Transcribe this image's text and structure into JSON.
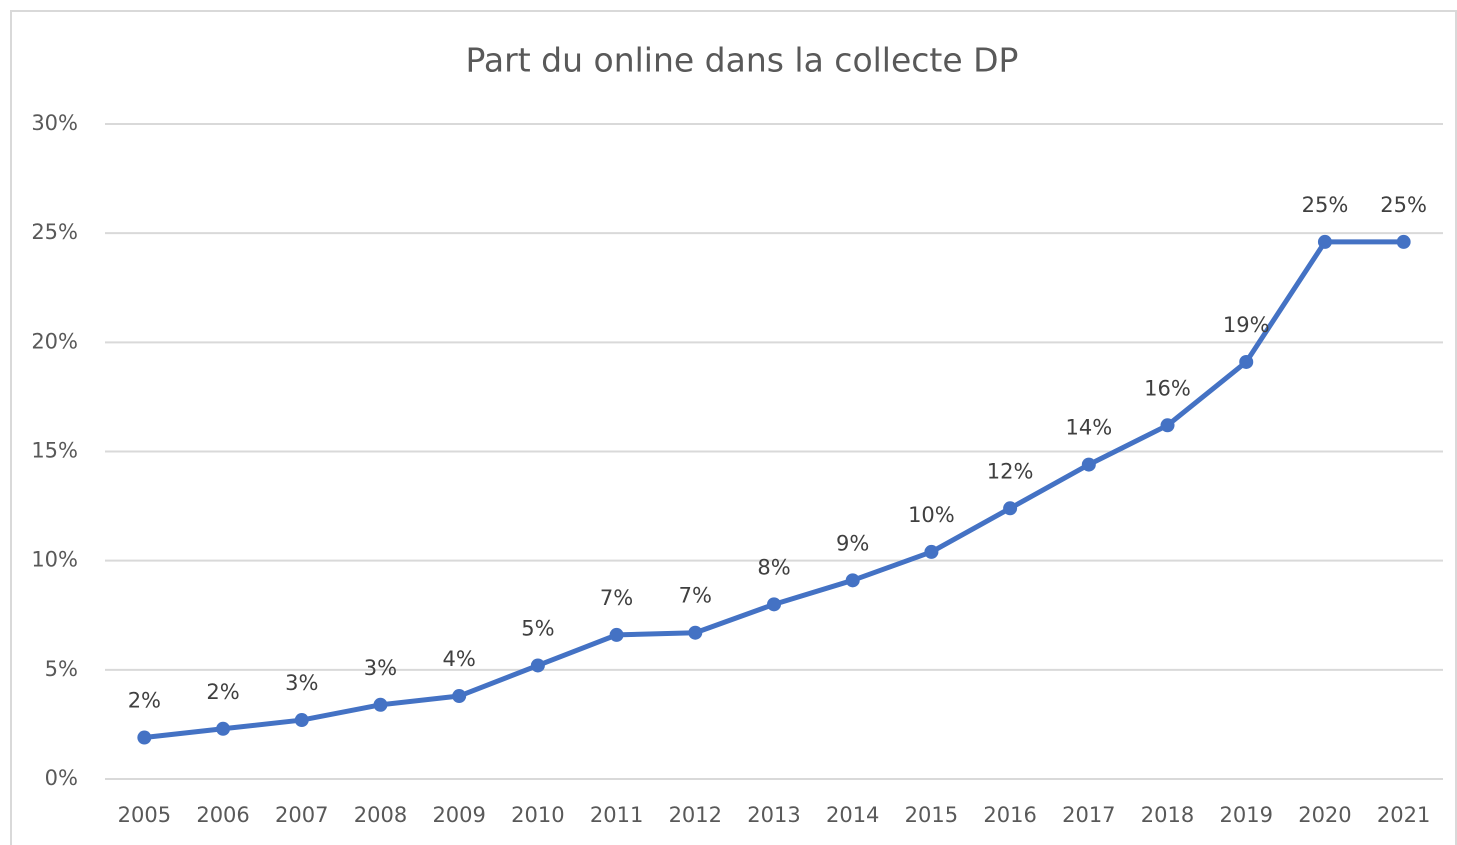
{
  "chart_data": {
    "type": "line",
    "title": "Part du online dans la collecte DP",
    "categories": [
      "2005",
      "2006",
      "2007",
      "2008",
      "2009",
      "2010",
      "2011",
      "2012",
      "2013",
      "2014",
      "2015",
      "2016",
      "2017",
      "2018",
      "2019",
      "2020",
      "2021"
    ],
    "series": [
      {
        "name": "Part du online",
        "color": "#4472c4",
        "values": [
          1.9,
          2.3,
          2.7,
          3.4,
          3.8,
          5.2,
          6.6,
          6.7,
          8.0,
          9.1,
          10.4,
          12.4,
          14.4,
          16.2,
          19.1,
          24.6,
          24.6
        ],
        "value_labels": [
          "2%",
          "2%",
          "3%",
          "3%",
          "4%",
          "5%",
          "7%",
          "7%",
          "8%",
          "9%",
          "10%",
          "12%",
          "14%",
          "16%",
          "19%",
          "25%",
          "25%"
        ]
      }
    ],
    "ylim": [
      0,
      30
    ],
    "yticks": [
      {
        "value": 0,
        "label": "0%"
      },
      {
        "value": 5,
        "label": "5%"
      },
      {
        "value": 10,
        "label": "10%"
      },
      {
        "value": 15,
        "label": "15%"
      },
      {
        "value": 20,
        "label": "20%"
      },
      {
        "value": 25,
        "label": "25%"
      },
      {
        "value": 30,
        "label": "30%"
      }
    ],
    "grid": true
  }
}
